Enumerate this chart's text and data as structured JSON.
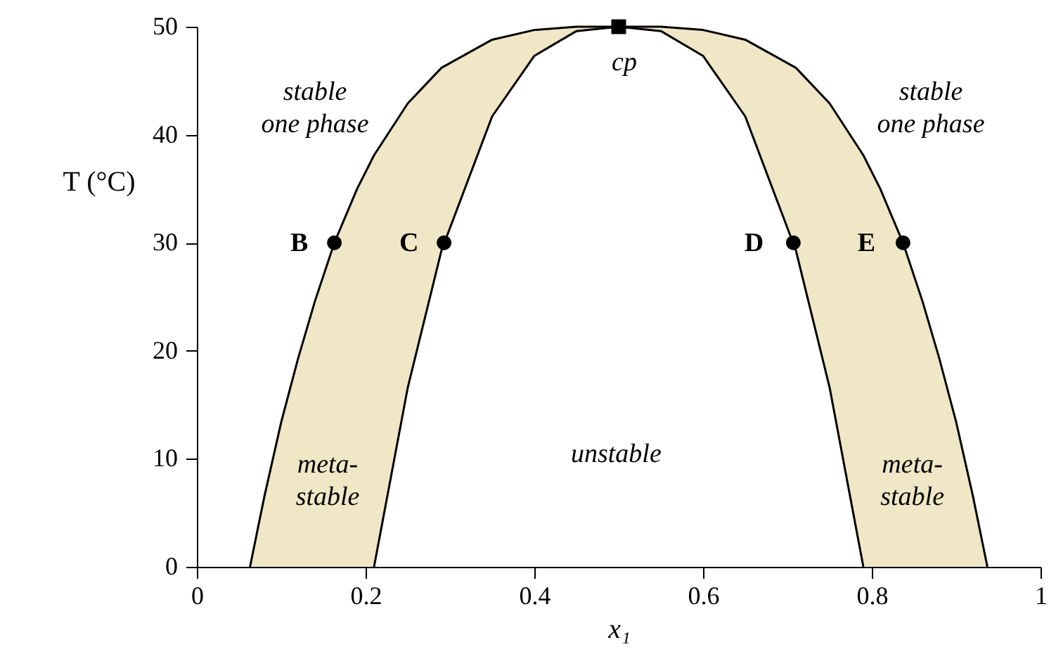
{
  "chart_data": {
    "type": "line",
    "xlabel": "x₁",
    "ylabel": "T (°C)",
    "xlim": [
      0,
      1
    ],
    "xticks": [
      0,
      0.2,
      0.4,
      0.6,
      0.8,
      1
    ],
    "ylim": [
      0,
      50
    ],
    "yticks": [
      0,
      10,
      20,
      30,
      40,
      50
    ],
    "grid": false,
    "series": [
      {
        "type": "area",
        "color": "#efe7c6",
        "x": [
          0.063,
          0.08,
          0.1,
          0.12,
          0.14,
          0.163,
          0.19,
          0.21,
          0.25,
          0.29,
          0.35,
          0.4,
          0.45,
          0.5,
          0.55,
          0.6,
          0.65,
          0.71,
          0.75,
          0.79,
          0.81,
          0.837,
          0.86,
          0.88,
          0.9,
          0.92,
          0.937
        ],
        "values": [
          0,
          6.5,
          13.4,
          19.3,
          24.6,
          30,
          35,
          38.1,
          42.9,
          46.2,
          48.8,
          49.7,
          50,
          50,
          50,
          49.7,
          48.8,
          46.2,
          42.9,
          38.1,
          35,
          30,
          24.6,
          19.3,
          13.4,
          6.5,
          0
        ]
      },
      {
        "type": "area",
        "color": "#ffffff",
        "x": [
          0.21,
          0.25,
          0.29,
          0.35,
          0.4,
          0.45,
          0.5,
          0.55,
          0.6,
          0.65,
          0.71,
          0.75,
          0.79
        ],
        "values": [
          0,
          16.6,
          29.3,
          41.7,
          47.3,
          49.6,
          50,
          49.6,
          47.3,
          41.7,
          29.3,
          16.6,
          0
        ]
      },
      {
        "type": "scatter",
        "color": "#000000",
        "marker": "circle",
        "x": [
          0.163,
          0.293,
          0.707,
          0.837
        ],
        "values": [
          30,
          30,
          30,
          30
        ]
      },
      {
        "type": "scatter",
        "color": "#000000",
        "marker": "square",
        "x": [
          0.5
        ],
        "values": [
          50
        ]
      }
    ],
    "annotations": [
      {
        "text": "B",
        "x": 0.163,
        "y": 30
      },
      {
        "text": "C",
        "x": 0.293,
        "y": 30
      },
      {
        "text": "D",
        "x": 0.707,
        "y": 30
      },
      {
        "text": "E",
        "x": 0.837,
        "y": 30
      },
      {
        "text": "cp",
        "x": 0.5,
        "y": 50
      },
      "stable\none phase",
      "stable\none phase",
      "unstable",
      "meta-\nstable",
      "meta-\nstable"
    ]
  }
}
